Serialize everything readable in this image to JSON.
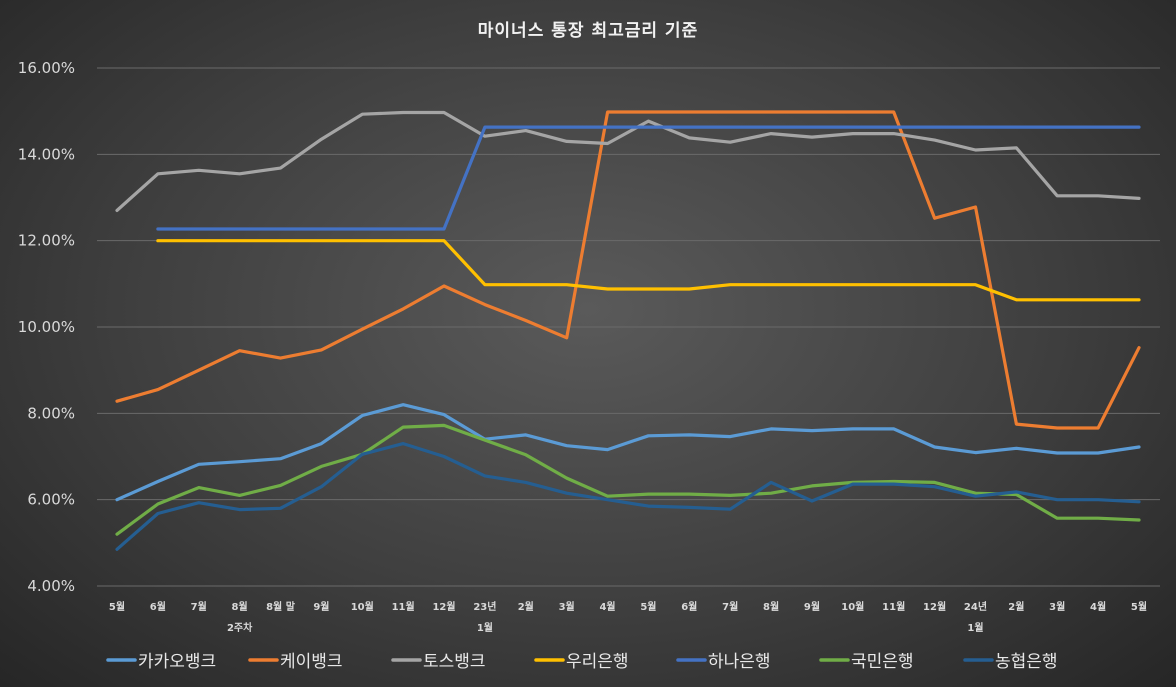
{
  "chart_data": {
    "type": "line",
    "title": "마이너스 통장 최고금리 기준",
    "xlabel": "",
    "ylabel": "",
    "ylim": [
      4,
      16
    ],
    "y_ticks": [
      "4.00%",
      "6.00%",
      "8.00%",
      "10.00%",
      "12.00%",
      "14.00%",
      "16.00%"
    ],
    "categories": [
      [
        "5월"
      ],
      [
        "6월"
      ],
      [
        "7월"
      ],
      [
        "8월",
        "2주차"
      ],
      [
        "8월 말"
      ],
      [
        "9월"
      ],
      [
        "10월"
      ],
      [
        "11월"
      ],
      [
        "12월"
      ],
      [
        "23년",
        "1월"
      ],
      [
        "2월"
      ],
      [
        "3월"
      ],
      [
        "4월"
      ],
      [
        "5월"
      ],
      [
        "6월"
      ],
      [
        "7월"
      ],
      [
        "8월"
      ],
      [
        "9월"
      ],
      [
        "10월"
      ],
      [
        "11월"
      ],
      [
        "12월"
      ],
      [
        "24년",
        "1월"
      ],
      [
        "2월"
      ],
      [
        "3월"
      ],
      [
        "4월"
      ],
      [
        "5월"
      ]
    ],
    "legend_position": "bottom",
    "grid": true,
    "series": [
      {
        "name": "카카오뱅크",
        "color": "#5b9bd5",
        "values": [
          6.0,
          6.42,
          6.82,
          6.88,
          6.95,
          7.3,
          7.95,
          8.2,
          7.97,
          7.4,
          7.5,
          7.25,
          7.16,
          7.48,
          7.5,
          7.46,
          7.64,
          7.6,
          7.64,
          7.64,
          7.22,
          7.09,
          7.19,
          7.08,
          7.08,
          7.22
        ]
      },
      {
        "name": "케이뱅크",
        "color": "#ed7d31",
        "values": [
          8.28,
          8.55,
          9.0,
          9.45,
          9.28,
          9.47,
          9.95,
          10.42,
          10.95,
          10.52,
          10.15,
          9.75,
          14.98,
          14.98,
          14.98,
          14.98,
          14.98,
          14.98,
          14.98,
          14.98,
          12.52,
          12.78,
          7.75,
          7.66,
          7.66,
          9.52
        ]
      },
      {
        "name": "토스뱅크",
        "color": "#a5a5a5",
        "values": [
          12.7,
          13.55,
          13.63,
          13.55,
          13.68,
          14.35,
          14.93,
          14.97,
          14.97,
          14.42,
          14.55,
          14.3,
          14.25,
          14.77,
          14.38,
          14.28,
          14.48,
          14.4,
          14.48,
          14.48,
          14.33,
          14.1,
          14.15,
          13.04,
          13.04,
          12.98
        ]
      },
      {
        "name": "우리은행",
        "color": "#ffc000",
        "values": [
          null,
          12.0,
          12.0,
          12.0,
          12.0,
          12.0,
          12.0,
          12.0,
          12.0,
          10.98,
          10.98,
          10.98,
          10.88,
          10.88,
          10.88,
          10.98,
          10.98,
          10.98,
          10.98,
          10.98,
          10.98,
          10.98,
          10.63,
          10.63,
          10.63,
          10.63
        ]
      },
      {
        "name": "하나은행",
        "color": "#4472c4",
        "values": [
          null,
          12.27,
          12.27,
          12.27,
          12.27,
          12.27,
          12.27,
          12.27,
          12.27,
          14.63,
          14.63,
          14.63,
          14.63,
          14.63,
          14.63,
          14.63,
          14.63,
          14.63,
          14.63,
          14.63,
          14.63,
          14.63,
          14.63,
          14.63,
          14.63,
          14.63
        ]
      },
      {
        "name": "국민은행",
        "color": "#70ad47",
        "values": [
          5.2,
          5.9,
          6.28,
          6.1,
          6.33,
          6.77,
          7.05,
          7.68,
          7.72,
          7.38,
          7.04,
          6.5,
          6.08,
          6.13,
          6.13,
          6.1,
          6.15,
          6.32,
          6.4,
          6.42,
          6.4,
          6.15,
          6.12,
          5.57,
          5.57,
          5.53
        ]
      },
      {
        "name": "농협은행",
        "color": "#255e91",
        "values": [
          4.85,
          5.68,
          5.93,
          5.77,
          5.8,
          6.3,
          7.05,
          7.3,
          7.0,
          6.55,
          6.4,
          6.15,
          6.0,
          5.85,
          5.82,
          5.78,
          6.4,
          5.97,
          6.36,
          6.36,
          6.3,
          6.08,
          6.18,
          6.0,
          6.0,
          5.95
        ]
      }
    ]
  }
}
